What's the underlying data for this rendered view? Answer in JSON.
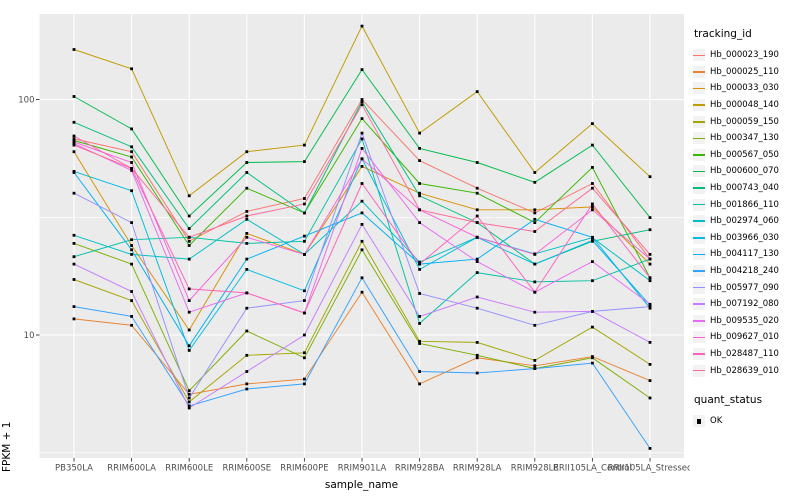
{
  "chart_data": {
    "type": "line",
    "x_axis_label": "sample_name",
    "y_axis_label": "FPKM + 1",
    "y_scale": "log10",
    "y_ticks": [
      100,
      10
    ],
    "y_minor_breaks": [
      31.6,
      3.16
    ],
    "ylim": [
      3.0,
      231
    ],
    "categories": [
      "PB350LA",
      "RRIM600LA",
      "RRIM600LE",
      "RRIM600SE",
      "RRIM600PE",
      "RRIM901LA",
      "RRIM928BA",
      "RRIM928LA",
      "RRIM928LE",
      "RRII105LA_Control",
      "RRII105LA_Stressed"
    ],
    "series": [
      {
        "name": "Hb_000023_190",
        "color": "#F8766D",
        "values": [
          68,
          60,
          25,
          33.5,
          38,
          100,
          55,
          42,
          33,
          44,
          21
        ]
      },
      {
        "name": "Hb_000025_110",
        "color": "#EA8331",
        "values": [
          11.7,
          11,
          5.6,
          6.2,
          6.5,
          15.2,
          6.2,
          8.0,
          7.4,
          8.1,
          6.4
        ]
      },
      {
        "name": "Hb_000033_030",
        "color": "#D89000",
        "values": [
          60,
          24,
          10.5,
          27,
          22,
          52,
          40,
          34,
          34,
          35,
          20
        ]
      },
      {
        "name": "Hb_000048_140",
        "color": "#C09B00",
        "values": [
          163,
          135,
          39,
          60,
          64,
          205,
          72,
          108,
          49,
          79,
          47
        ]
      },
      {
        "name": "Hb_000059_150",
        "color": "#A3A500",
        "values": [
          17.2,
          14,
          5.2,
          8.2,
          8.4,
          25,
          9.4,
          9.3,
          7.8,
          10.8,
          7.5
        ]
      },
      {
        "name": "Hb_000347_130",
        "color": "#7CAE00",
        "values": [
          24.5,
          20,
          5.8,
          10.4,
          8.0,
          23,
          9.2,
          8.2,
          7.2,
          8.0,
          5.4
        ]
      },
      {
        "name": "Hb_000567_050",
        "color": "#39B600",
        "values": [
          67,
          57,
          24,
          42,
          33,
          83,
          44,
          40,
          30,
          51.5,
          17.5
        ]
      },
      {
        "name": "Hb_000600_070",
        "color": "#00BB4E",
        "values": [
          103,
          75,
          32,
          54,
          54.5,
          134,
          62,
          54,
          44.5,
          64,
          31.5
        ]
      },
      {
        "name": "Hb_000743_040",
        "color": "#00BF7D",
        "values": [
          80,
          63,
          28.3,
          49,
          33,
          98,
          39,
          30,
          20,
          25,
          28
        ]
      },
      {
        "name": "Hb_001866_110",
        "color": "#00C1A3",
        "values": [
          21.5,
          25.4,
          26,
          24.5,
          25,
          68,
          11.2,
          18.4,
          16.8,
          17,
          21
        ]
      },
      {
        "name": "Hb_002974_060",
        "color": "#00BFC4",
        "values": [
          26.5,
          22,
          21,
          31,
          22,
          37,
          20.4,
          26,
          22.1,
          25.9,
          17
        ]
      },
      {
        "name": "Hb_003966_030",
        "color": "#00BAE0",
        "values": [
          49.5,
          41,
          8.6,
          19,
          15.4,
          56,
          19,
          26,
          20,
          25.2,
          13.4
        ]
      },
      {
        "name": "Hb_004117_130",
        "color": "#00B0F6",
        "values": [
          49,
          23,
          9.0,
          21,
          26.3,
          33,
          20,
          21,
          31,
          26,
          13.0
        ]
      },
      {
        "name": "Hb_004218_240",
        "color": "#35A2FF",
        "values": [
          13.2,
          12,
          5.0,
          5.9,
          6.2,
          17.5,
          7.0,
          6.9,
          7.2,
          7.6,
          3.3
        ]
      },
      {
        "name": "Hb_005977_090",
        "color": "#9590FF",
        "values": [
          40,
          30,
          5.4,
          13,
          14,
          72,
          15,
          13,
          11,
          12.6,
          13.2
        ]
      },
      {
        "name": "Hb_007192_080",
        "color": "#C77CFF",
        "values": [
          20,
          15.3,
          4.9,
          7.0,
          10,
          29.5,
          12,
          14.5,
          12.5,
          12.6,
          9.3
        ]
      },
      {
        "name": "Hb_009535_020",
        "color": "#E76BF3",
        "values": [
          65,
          50,
          12.5,
          15.1,
          12.4,
          62,
          30,
          20.5,
          15.2,
          20.5,
          13.5
        ]
      },
      {
        "name": "Hb_009627_010",
        "color": "#FA62DB",
        "values": [
          66,
          54,
          14,
          26,
          22,
          56,
          34,
          26,
          22,
          34,
          21
        ]
      },
      {
        "name": "Hb_028487_110",
        "color": "#FF62BC",
        "values": [
          70,
          51,
          15.7,
          15.1,
          12.4,
          44,
          20,
          32,
          15.2,
          36,
          17.5
        ]
      },
      {
        "name": "Hb_028639_010",
        "color": "#FF6A98",
        "values": [
          64,
          51,
          26,
          32,
          36,
          95,
          34,
          30,
          27.5,
          42,
          22
        ]
      }
    ],
    "point": {
      "shape": "filled-square",
      "color": "#000000"
    }
  },
  "legend": {
    "tracking_title": "tracking_id",
    "quant_title": "quant_status",
    "quant_entries": [
      {
        "label": "OK",
        "shape": "filled-square",
        "color": "#000000"
      }
    ]
  },
  "theme": {
    "panel_bg": "#EBEBEB",
    "grid": "#FFFFFF",
    "axis_text": "#4D4D4D",
    "axis_title": "#000000",
    "tick": "#333333",
    "legend_key_bg": "#F2F2F2",
    "bg": "#FFFFFF"
  }
}
